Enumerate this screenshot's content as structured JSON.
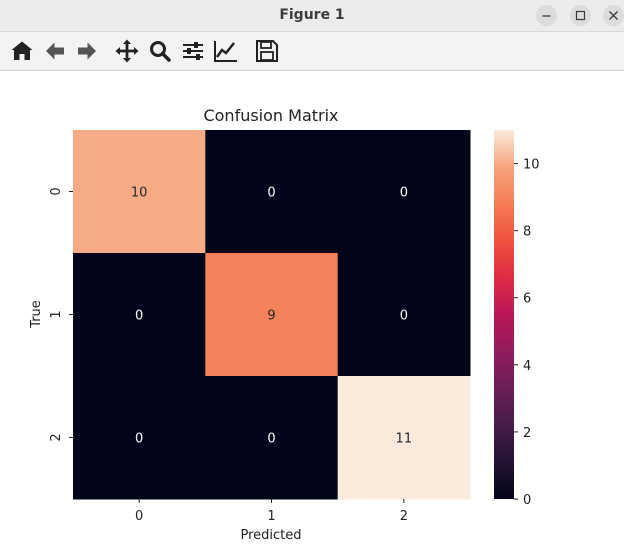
{
  "window": {
    "title": "Figure 1"
  },
  "window_controls": {
    "minimize_icon": "minimize-icon",
    "maximize_icon": "maximize-icon",
    "close_icon": "close-icon"
  },
  "toolbar": {
    "icons": [
      "home-icon",
      "back-icon",
      "forward-icon",
      "pan-icon",
      "zoom-icon",
      "configure-subplots-icon",
      "edit-axis-icon",
      "save-icon"
    ]
  },
  "chart_data": {
    "type": "heatmap",
    "title": "Confusion Matrix",
    "xlabel": "Predicted",
    "ylabel": "True",
    "x_categories": [
      "0",
      "1",
      "2"
    ],
    "y_categories": [
      "0",
      "1",
      "2"
    ],
    "values": [
      [
        10,
        0,
        0
      ],
      [
        0,
        9,
        0
      ],
      [
        0,
        0,
        11
      ]
    ],
    "colormap": "rocket",
    "colorbar": {
      "min": 0,
      "max": 11,
      "ticks": [
        "0",
        "2",
        "4",
        "6",
        "8",
        "10"
      ]
    },
    "colors": {
      "low": "#03051a",
      "high": "#faebdd"
    }
  }
}
